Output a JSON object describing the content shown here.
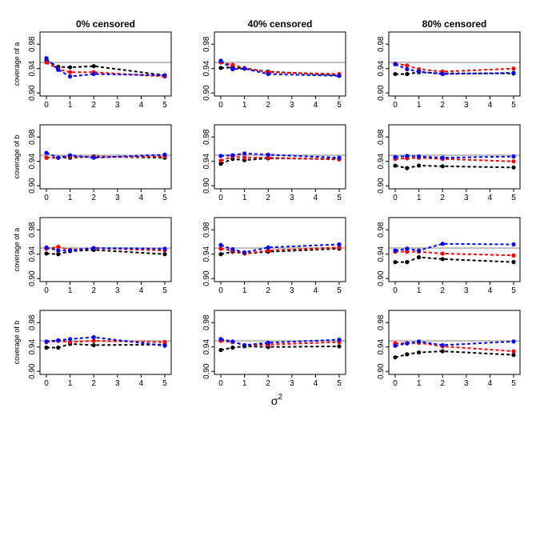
{
  "chart_data": {
    "type": "line",
    "column_titles": [
      "0% censored",
      "40% censored",
      "80% censored"
    ],
    "row_ylabels": [
      "coverage of a",
      "coverage of b",
      "coverage of a",
      "coverage of b"
    ],
    "xlabel_base": "σ",
    "xlabel_sup": "2",
    "x": [
      0,
      0.5,
      1,
      2,
      5
    ],
    "xticks": [
      0,
      1,
      2,
      3,
      4,
      5
    ],
    "yticks": [
      0.9,
      0.94,
      0.98
    ],
    "ytick_labels": [
      "0.90",
      "0.94",
      "0.98"
    ],
    "xlim": [
      0,
      5
    ],
    "ylim": [
      0.895,
      1.0
    ],
    "reference_line": 0.95,
    "reference_color": "#bdbdbd",
    "series_colors": [
      "#000000",
      "#ff0000",
      "#0000ff"
    ],
    "panels": [
      {
        "row": 0,
        "col": 0,
        "series": [
          {
            "color": "#000000",
            "values": [
              0.953,
              0.943,
              0.942,
              0.944,
              0.929
            ]
          },
          {
            "color": "#ff0000",
            "values": [
              0.95,
              0.939,
              0.934,
              0.934,
              0.927
            ]
          },
          {
            "color": "#0000ff",
            "values": [
              0.957,
              0.938,
              0.927,
              0.931,
              0.929
            ]
          }
        ]
      },
      {
        "row": 0,
        "col": 1,
        "series": [
          {
            "color": "#000000",
            "values": [
              0.941,
              0.942,
              0.94,
              0.935,
              0.929
            ]
          },
          {
            "color": "#ff0000",
            "values": [
              0.95,
              0.946,
              0.941,
              0.934,
              0.931
            ]
          },
          {
            "color": "#0000ff",
            "values": [
              0.953,
              0.939,
              0.94,
              0.931,
              0.928
            ]
          }
        ]
      },
      {
        "row": 0,
        "col": 2,
        "series": [
          {
            "color": "#000000",
            "values": [
              0.931,
              0.931,
              0.934,
              0.932,
              0.932
            ]
          },
          {
            "color": "#ff0000",
            "values": [
              0.948,
              0.945,
              0.939,
              0.935,
              0.94
            ]
          },
          {
            "color": "#0000ff",
            "values": [
              0.947,
              0.939,
              0.935,
              0.931,
              0.933
            ]
          }
        ]
      },
      {
        "row": 1,
        "col": 0,
        "series": [
          {
            "color": "#000000",
            "values": [
              0.946,
              0.946,
              0.946,
              0.948,
              0.946
            ]
          },
          {
            "color": "#ff0000",
            "values": [
              0.946,
              0.946,
              0.948,
              0.947,
              0.948
            ]
          },
          {
            "color": "#0000ff",
            "values": [
              0.954,
              0.946,
              0.95,
              0.946,
              0.951
            ]
          }
        ]
      },
      {
        "row": 1,
        "col": 1,
        "series": [
          {
            "color": "#000000",
            "values": [
              0.936,
              0.944,
              0.942,
              0.945,
              0.944
            ]
          },
          {
            "color": "#ff0000",
            "values": [
              0.941,
              0.948,
              0.946,
              0.946,
              0.943
            ]
          },
          {
            "color": "#0000ff",
            "values": [
              0.949,
              0.95,
              0.953,
              0.951,
              0.946
            ]
          }
        ]
      },
      {
        "row": 1,
        "col": 2,
        "series": [
          {
            "color": "#000000",
            "values": [
              0.933,
              0.929,
              0.933,
              0.932,
              0.93
            ]
          },
          {
            "color": "#ff0000",
            "values": [
              0.944,
              0.945,
              0.946,
              0.944,
              0.94
            ]
          },
          {
            "color": "#0000ff",
            "values": [
              0.947,
              0.949,
              0.948,
              0.946,
              0.948
            ]
          }
        ]
      },
      {
        "row": 2,
        "col": 0,
        "series": [
          {
            "color": "#000000",
            "values": [
              0.941,
              0.94,
              0.945,
              0.947,
              0.94
            ]
          },
          {
            "color": "#ff0000",
            "values": [
              0.949,
              0.952,
              0.947,
              0.95,
              0.946
            ]
          },
          {
            "color": "#0000ff",
            "values": [
              0.951,
              0.946,
              0.946,
              0.95,
              0.949
            ]
          }
        ]
      },
      {
        "row": 2,
        "col": 1,
        "series": [
          {
            "color": "#000000",
            "values": [
              0.94,
              0.944,
              0.941,
              0.944,
              0.949
            ]
          },
          {
            "color": "#ff0000",
            "values": [
              0.949,
              0.946,
              0.941,
              0.946,
              0.951
            ]
          },
          {
            "color": "#0000ff",
            "values": [
              0.955,
              0.948,
              0.943,
              0.951,
              0.956
            ]
          }
        ]
      },
      {
        "row": 2,
        "col": 2,
        "series": [
          {
            "color": "#000000",
            "values": [
              0.927,
              0.927,
              0.935,
              0.932,
              0.927
            ]
          },
          {
            "color": "#ff0000",
            "values": [
              0.944,
              0.944,
              0.944,
              0.941,
              0.938
            ]
          },
          {
            "color": "#0000ff",
            "values": [
              0.946,
              0.949,
              0.946,
              0.957,
              0.956
            ]
          }
        ]
      },
      {
        "row": 3,
        "col": 0,
        "series": [
          {
            "color": "#000000",
            "values": [
              0.939,
              0.939,
              0.945,
              0.943,
              0.944
            ]
          },
          {
            "color": "#ff0000",
            "values": [
              0.948,
              0.95,
              0.948,
              0.95,
              0.948
            ]
          },
          {
            "color": "#0000ff",
            "values": [
              0.949,
              0.951,
              0.953,
              0.956,
              0.942
            ]
          }
        ]
      },
      {
        "row": 3,
        "col": 1,
        "series": [
          {
            "color": "#000000",
            "values": [
              0.935,
              0.939,
              0.941,
              0.94,
              0.941
            ]
          },
          {
            "color": "#ff0000",
            "values": [
              0.95,
              0.948,
              0.943,
              0.944,
              0.948
            ]
          },
          {
            "color": "#0000ff",
            "values": [
              0.953,
              0.949,
              0.943,
              0.947,
              0.952
            ]
          }
        ]
      },
      {
        "row": 3,
        "col": 2,
        "series": [
          {
            "color": "#000000",
            "values": [
              0.923,
              0.928,
              0.931,
              0.933,
              0.927
            ]
          },
          {
            "color": "#ff0000",
            "values": [
              0.946,
              0.946,
              0.947,
              0.941,
              0.933
            ]
          },
          {
            "color": "#0000ff",
            "values": [
              0.942,
              0.946,
              0.949,
              0.943,
              0.949
            ]
          }
        ]
      }
    ]
  }
}
